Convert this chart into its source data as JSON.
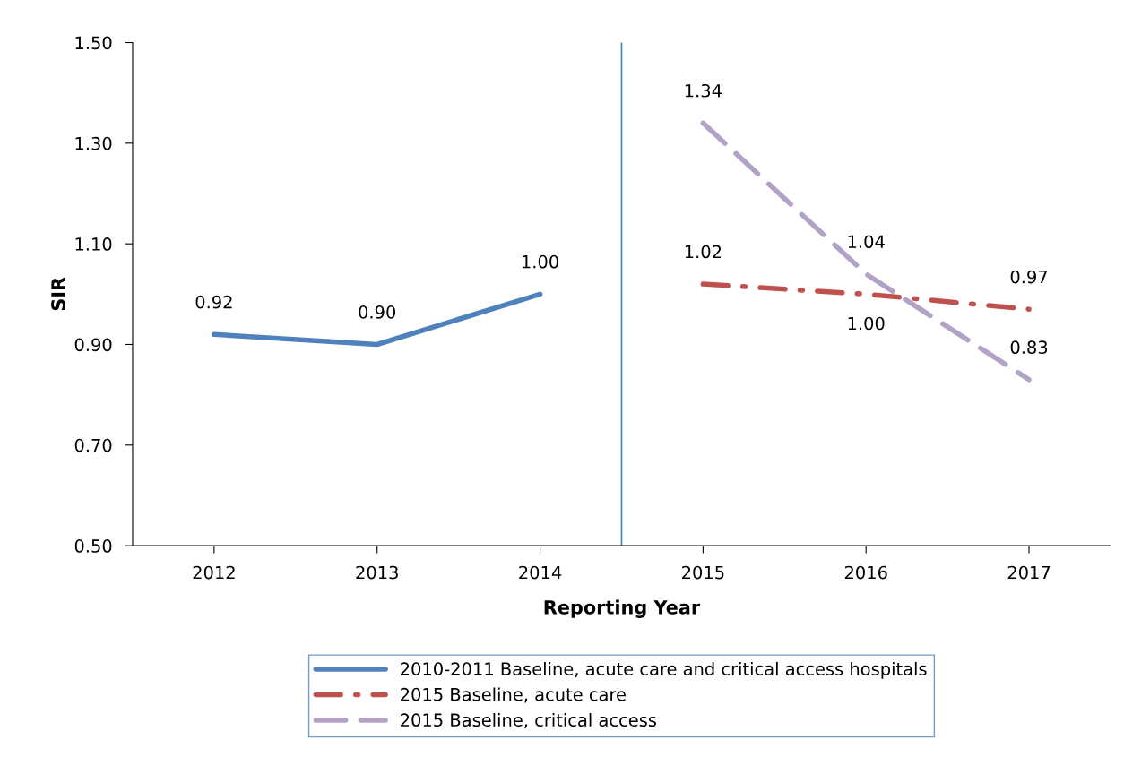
{
  "chart_data": {
    "type": "line",
    "xlabel": "Reporting Year",
    "ylabel": "SIR",
    "x": [
      2012,
      2013,
      2014,
      2015,
      2016,
      2017
    ],
    "xlim": [
      2011.5,
      2017.5
    ],
    "xticks": [
      2012,
      2013,
      2014,
      2015,
      2016,
      2017
    ],
    "ylim": [
      0.5,
      1.5
    ],
    "yticks": [
      {
        "value": 0.5,
        "label": "0.50"
      },
      {
        "value": 0.7,
        "label": "0.70"
      },
      {
        "value": 0.9,
        "label": "0.90"
      },
      {
        "value": 1.1,
        "label": "1.10"
      },
      {
        "value": 1.3,
        "label": "1.30"
      },
      {
        "value": 1.5,
        "label": "1.50"
      }
    ],
    "series": [
      {
        "name": "2010-2011 Baseline, acute care and critical access hospitals",
        "color": "#4f81bd",
        "line_style": "solid",
        "values": [
          0.92,
          0.9,
          1.0,
          null,
          null,
          null
        ],
        "value_labels": [
          "0.92",
          "0.90",
          "1.00",
          null,
          null,
          null
        ]
      },
      {
        "name": "2015 Baseline, acute care",
        "color": "#c0504d",
        "line_style": "dashdot",
        "values": [
          null,
          null,
          null,
          1.02,
          1.0,
          0.97
        ],
        "value_labels": [
          null,
          null,
          null,
          "1.02",
          "1.00",
          "0.97"
        ]
      },
      {
        "name": "2015 Baseline, critical access",
        "color": "#b3a2c7",
        "line_style": "dashed",
        "values": [
          null,
          null,
          null,
          1.34,
          1.04,
          0.83
        ],
        "value_labels": [
          null,
          null,
          null,
          "1.34",
          "1.04",
          "0.83"
        ]
      }
    ],
    "ref_lines": [
      {
        "axis": "x",
        "value": 2014.5,
        "color": "#4f81bd",
        "line_style": "solid"
      }
    ],
    "grid": false,
    "legend": "bottom",
    "marker": "none"
  }
}
